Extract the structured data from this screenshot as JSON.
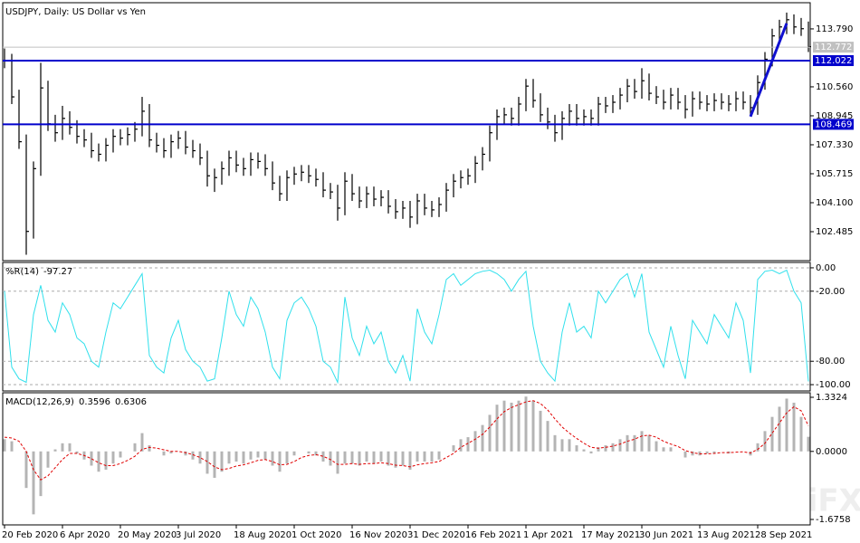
{
  "chart_data": [
    {
      "type": "ohlc",
      "title": "USDJPY, Daily:  US Dollar vs Yen",
      "color": "#000000",
      "categories": [
        "20 Feb 2020",
        null,
        null,
        null,
        null,
        null,
        null,
        null,
        "6 Apr 2020",
        null,
        null,
        null,
        null,
        null,
        null,
        null,
        "20 May 2020",
        null,
        null,
        null,
        null,
        null,
        null,
        null,
        "3 Jul 2020",
        null,
        null,
        null,
        null,
        null,
        null,
        null,
        "18 Aug 2020",
        null,
        null,
        null,
        null,
        null,
        null,
        null,
        "1 Oct 2020",
        null,
        null,
        null,
        null,
        null,
        null,
        null,
        "16 Nov 2020",
        null,
        null,
        null,
        null,
        null,
        null,
        null,
        "31 Dec 2020",
        null,
        null,
        null,
        null,
        null,
        null,
        null,
        "16 Feb 2021",
        null,
        null,
        null,
        null,
        null,
        null,
        null,
        "1 Apr 2021",
        null,
        null,
        null,
        null,
        null,
        null,
        null,
        "17 May 2021",
        null,
        null,
        null,
        null,
        null,
        null,
        null,
        "30 Jun 2021",
        null,
        null,
        null,
        null,
        null,
        null,
        null,
        "13 Aug 2021",
        null,
        null,
        null,
        null,
        null,
        null,
        null,
        "28 Sep 2021",
        null,
        null,
        null,
        null,
        null,
        null,
        null
      ],
      "high": [
        112.7,
        112.4,
        110.4,
        107.9,
        106.4,
        111.9,
        110.9,
        109.0,
        109.5,
        109.2,
        108.7,
        108.2,
        108.0,
        107.4,
        107.7,
        108.2,
        108.2,
        108.3,
        108.6,
        110.0,
        109.6,
        108.0,
        107.7,
        107.9,
        108.1,
        108.1,
        107.6,
        107.4,
        107.0,
        106.0,
        106.4,
        107.0,
        107.0,
        106.6,
        106.9,
        106.9,
        106.8,
        106.4,
        105.6,
        105.9,
        106.1,
        106.2,
        106.2,
        106.0,
        105.8,
        105.2,
        105.1,
        105.8,
        105.7,
        105.0,
        105.0,
        105.0,
        104.8,
        104.8,
        104.3,
        104.2,
        104.2,
        104.6,
        104.6,
        104.2,
        104.4,
        105.2,
        105.7,
        105.9,
        106.0,
        106.7,
        107.2,
        108.4,
        109.3,
        109.4,
        109.4,
        110.0,
        111.0,
        111.0,
        110.2,
        109.4,
        109.0,
        109.2,
        109.6,
        109.6,
        109.3,
        109.3,
        110.0,
        110.0,
        110.1,
        110.5,
        111.0,
        111.0,
        111.6,
        111.3,
        110.6,
        110.4,
        110.5,
        110.5,
        110.1,
        110.3,
        110.3,
        110.1,
        110.2,
        110.2,
        110.1,
        110.3,
        110.3,
        110.1,
        111.2,
        112.5,
        113.8,
        114.3,
        114.7,
        114.6,
        114.4,
        114.2
      ],
      "low": [
        111.6,
        109.6,
        107.1,
        101.2,
        102.1,
        105.6,
        108.1,
        107.5,
        107.6,
        107.9,
        107.4,
        107.2,
        106.6,
        106.4,
        106.4,
        106.9,
        107.3,
        107.3,
        107.5,
        107.8,
        107.2,
        106.9,
        106.6,
        106.6,
        107.1,
        106.8,
        106.6,
        106.2,
        105.0,
        104.7,
        105.1,
        105.6,
        105.8,
        105.6,
        105.6,
        106.0,
        105.6,
        104.8,
        104.2,
        104.2,
        105.1,
        105.3,
        105.2,
        105.0,
        104.4,
        104.3,
        103.1,
        103.4,
        104.2,
        103.8,
        103.8,
        103.9,
        103.9,
        103.5,
        103.2,
        103.2,
        102.7,
        102.9,
        103.4,
        103.3,
        103.3,
        103.6,
        104.4,
        104.9,
        105.1,
        105.2,
        105.9,
        106.4,
        107.6,
        108.5,
        108.4,
        108.4,
        109.2,
        109.4,
        108.6,
        108.2,
        107.5,
        107.6,
        108.4,
        108.4,
        108.4,
        108.4,
        108.4,
        109.1,
        109.1,
        109.3,
        109.7,
        109.9,
        109.9,
        109.8,
        109.6,
        109.3,
        109.3,
        109.3,
        108.8,
        108.9,
        109.3,
        109.2,
        109.2,
        109.3,
        109.2,
        109.2,
        109.3,
        109.0,
        109.0,
        110.4,
        111.7,
        113.0,
        113.5,
        113.5,
        113.4,
        112.5
      ],
      "close": [
        112.0,
        110.0,
        107.5,
        102.5,
        106.0,
        110.5,
        108.5,
        108.0,
        108.8,
        108.3,
        107.8,
        107.6,
        107.0,
        106.8,
        107.3,
        107.8,
        107.7,
        107.9,
        108.2,
        109.2,
        107.6,
        107.3,
        107.0,
        107.5,
        107.7,
        107.2,
        107.0,
        106.6,
        105.6,
        105.5,
        106.0,
        106.6,
        106.2,
        106.0,
        106.5,
        106.4,
        106.0,
        105.2,
        104.6,
        105.5,
        105.7,
        105.8,
        105.6,
        105.4,
        104.8,
        104.7,
        103.8,
        105.3,
        104.6,
        104.2,
        104.6,
        104.3,
        104.4,
        103.9,
        103.6,
        103.8,
        103.3,
        104.2,
        103.8,
        103.7,
        104.0,
        104.8,
        105.3,
        105.5,
        105.6,
        106.3,
        106.8,
        108.0,
        108.9,
        109.0,
        108.8,
        109.6,
        110.6,
        109.8,
        109.0,
        108.6,
        108.0,
        108.8,
        109.2,
        108.8,
        108.9,
        108.8,
        109.6,
        109.5,
        109.7,
        110.1,
        110.6,
        110.3,
        110.9,
        110.2,
        110.0,
        109.7,
        110.1,
        109.7,
        109.3,
        109.9,
        109.7,
        109.6,
        109.8,
        109.7,
        109.6,
        109.9,
        109.7,
        109.4,
        110.8,
        112.1,
        113.4,
        113.9,
        114.3,
        113.9,
        113.8,
        112.8
      ],
      "ylim": [
        100.87,
        115.25
      ],
      "yticks": [
        {
          "value": 113.79,
          "label": "113.790"
        },
        {
          "value": 110.56,
          "label": "110.560"
        },
        108.945,
        {
          "value": 107.33,
          "label": "107.330"
        },
        105.715,
        {
          "value": 104.1,
          "label": "104.100"
        },
        102.485
      ],
      "hlines": [
        {
          "value": 112.022,
          "color": "#0000cc"
        },
        {
          "value": 108.469,
          "color": "#0000cc"
        }
      ],
      "last_price": {
        "value": 112.772,
        "color": "#c0c0c0"
      },
      "trendline": {
        "x": [
          103,
          108
        ],
        "y": [
          108.9,
          114.1
        ],
        "color": "#1010d0"
      },
      "watermark": "WikiFX"
    },
    {
      "type": "line",
      "title": "%R(14)",
      "color": "#30e0ec",
      "grid": true,
      "values": [
        -20,
        -85,
        -95,
        -98,
        -40,
        -15,
        -45,
        -55,
        -30,
        -40,
        -60,
        -65,
        -80,
        -85,
        -55,
        -30,
        -35,
        -25,
        -15,
        -5,
        -75,
        -85,
        -90,
        -60,
        -45,
        -70,
        -80,
        -85,
        -97,
        -95,
        -60,
        -20,
        -40,
        -50,
        -25,
        -35,
        -55,
        -85,
        -95,
        -45,
        -30,
        -25,
        -35,
        -50,
        -80,
        -85,
        -98,
        -25,
        -60,
        -75,
        -50,
        -65,
        -55,
        -80,
        -90,
        -75,
        -97,
        -35,
        -55,
        -65,
        -40,
        -10,
        -5,
        -15,
        -10,
        -5,
        -3,
        -2,
        -5,
        -10,
        -20,
        -10,
        -3,
        -50,
        -80,
        -90,
        -97,
        -55,
        -30,
        -55,
        -50,
        -60,
        -20,
        -30,
        -20,
        -10,
        -5,
        -25,
        -5,
        -55,
        -70,
        -85,
        -50,
        -75,
        -95,
        -45,
        -55,
        -65,
        -40,
        -50,
        -60,
        -30,
        -45,
        -90,
        -10,
        -3,
        -2,
        -5,
        -2,
        -20,
        -30,
        -97.27
      ],
      "ylim": [
        -105.4,
        4.6
      ],
      "yticks": [
        {
          "value": 0,
          "label": "0.00"
        },
        {
          "value": -20,
          "label": "-20.00"
        },
        {
          "value": -80,
          "label": "-80.00"
        },
        {
          "value": -100,
          "label": "-100.00"
        }
      ]
    },
    {
      "type": "macd",
      "title": "MACD(12,26,9)",
      "color": "#b4b4b4",
      "signal_color": "#e00000",
      "values": [
        0.3,
        0.25,
        0.0,
        -0.9,
        -1.55,
        -1.1,
        -0.4,
        0.05,
        0.2,
        0.2,
        -0.05,
        -0.2,
        -0.35,
        -0.5,
        -0.45,
        -0.3,
        -0.15,
        0.0,
        0.2,
        0.45,
        0.15,
        0.0,
        -0.1,
        -0.05,
        0.0,
        -0.1,
        -0.2,
        -0.3,
        -0.55,
        -0.65,
        -0.5,
        -0.3,
        -0.25,
        -0.3,
        -0.2,
        -0.15,
        -0.2,
        -0.35,
        -0.5,
        -0.3,
        -0.1,
        0.0,
        -0.05,
        -0.1,
        -0.25,
        -0.35,
        -0.55,
        -0.3,
        -0.3,
        -0.35,
        -0.25,
        -0.3,
        -0.25,
        -0.35,
        -0.4,
        -0.35,
        -0.45,
        -0.25,
        -0.25,
        -0.25,
        -0.2,
        0.0,
        0.15,
        0.3,
        0.35,
        0.5,
        0.65,
        0.9,
        1.15,
        1.25,
        1.2,
        1.25,
        1.35,
        1.25,
        1.0,
        0.75,
        0.4,
        0.3,
        0.3,
        0.15,
        0.05,
        -0.05,
        0.1,
        0.15,
        0.2,
        0.3,
        0.4,
        0.4,
        0.5,
        0.4,
        0.25,
        0.1,
        0.1,
        0.0,
        -0.15,
        -0.1,
        -0.1,
        -0.05,
        -0.05,
        0.0,
        -0.05,
        0.0,
        0.0,
        -0.1,
        0.2,
        0.5,
        0.85,
        1.1,
        1.3,
        1.2,
        0.85,
        0.3596
      ],
      "signal": [
        0.35,
        0.33,
        0.25,
        0.0,
        -0.45,
        -0.7,
        -0.6,
        -0.4,
        -0.2,
        -0.05,
        -0.05,
        -0.1,
        -0.18,
        -0.28,
        -0.35,
        -0.35,
        -0.3,
        -0.22,
        -0.12,
        0.05,
        0.1,
        0.08,
        0.04,
        0.0,
        0.0,
        -0.03,
        -0.08,
        -0.15,
        -0.25,
        -0.38,
        -0.45,
        -0.42,
        -0.36,
        -0.33,
        -0.28,
        -0.22,
        -0.2,
        -0.25,
        -0.33,
        -0.32,
        -0.25,
        -0.15,
        -0.1,
        -0.08,
        -0.12,
        -0.2,
        -0.32,
        -0.32,
        -0.3,
        -0.32,
        -0.3,
        -0.3,
        -0.28,
        -0.3,
        -0.34,
        -0.35,
        -0.38,
        -0.33,
        -0.3,
        -0.28,
        -0.25,
        -0.15,
        -0.05,
        0.1,
        0.2,
        0.3,
        0.42,
        0.6,
        0.8,
        0.98,
        1.08,
        1.15,
        1.22,
        1.25,
        1.18,
        1.02,
        0.8,
        0.6,
        0.45,
        0.32,
        0.2,
        0.1,
        0.08,
        0.1,
        0.13,
        0.18,
        0.25,
        0.3,
        0.38,
        0.4,
        0.35,
        0.25,
        0.18,
        0.12,
        0.02,
        -0.03,
        -0.06,
        -0.06,
        -0.05,
        -0.03,
        -0.03,
        -0.02,
        -0.01,
        -0.04,
        0.05,
        0.2,
        0.45,
        0.7,
        0.95,
        1.1,
        1.0,
        0.6306
      ],
      "ylim": [
        -1.81,
        1.444
      ],
      "yticks": [
        1.3324,
        {
          "value": 0,
          "label": "0.0000"
        },
        -1.6758
      ]
    }
  ]
}
